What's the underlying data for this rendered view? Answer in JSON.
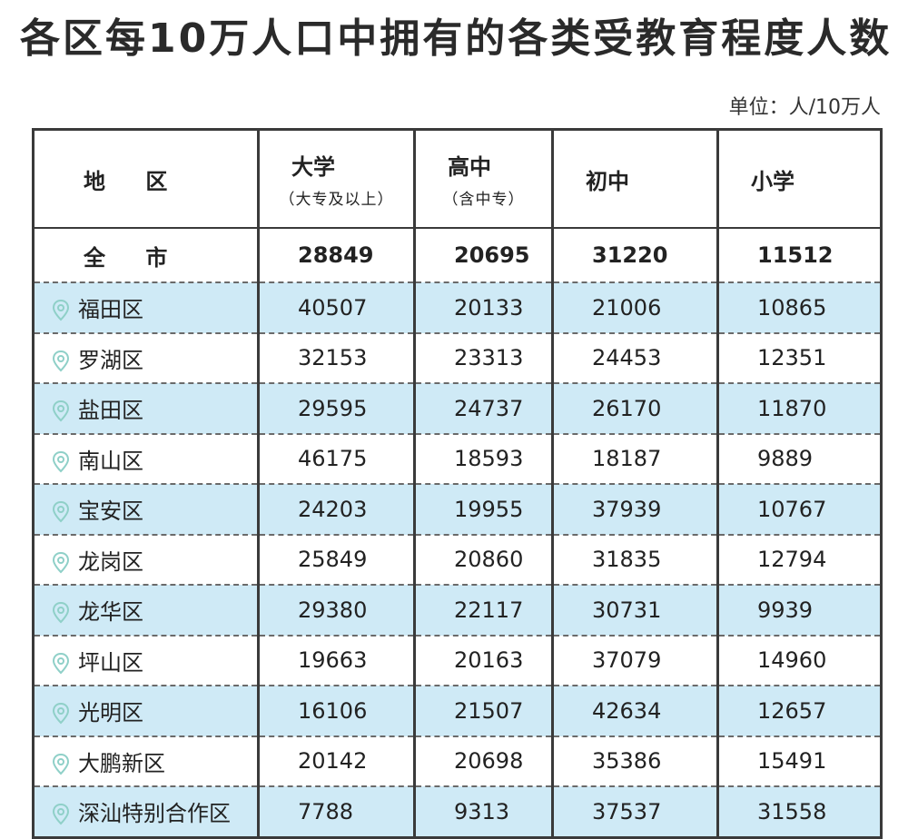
{
  "title": "各区每10万人口中拥有的各类受教育程度人数",
  "unit": "单位：人/10万人",
  "header": {
    "region": "地 区",
    "col1": "大学",
    "col1_sub": "（大专及以上）",
    "col2": "高中",
    "col2_sub": "（含中专）",
    "col3": "初中",
    "col4": "小学"
  },
  "total": {
    "region": "全 市",
    "values": [
      "28849",
      "20695",
      "31220",
      "11512"
    ]
  },
  "rows": [
    {
      "region": "福田区",
      "values": [
        "40507",
        "20133",
        "21006",
        "10865"
      ]
    },
    {
      "region": "罗湖区",
      "values": [
        "32153",
        "23313",
        "24453",
        "12351"
      ]
    },
    {
      "region": "盐田区",
      "values": [
        "29595",
        "24737",
        "26170",
        "11870"
      ]
    },
    {
      "region": "南山区",
      "values": [
        "46175",
        "18593",
        "18187",
        "9889"
      ]
    },
    {
      "region": "宝安区",
      "values": [
        "24203",
        "19955",
        "37939",
        "10767"
      ]
    },
    {
      "region": "龙岗区",
      "values": [
        "25849",
        "20860",
        "31835",
        "12794"
      ]
    },
    {
      "region": "龙华区",
      "values": [
        "29380",
        "22117",
        "30731",
        "9939"
      ]
    },
    {
      "region": "坪山区",
      "values": [
        "19663",
        "20163",
        "37079",
        "14960"
      ]
    },
    {
      "region": "光明区",
      "values": [
        "16106",
        "21507",
        "42634",
        "12657"
      ]
    },
    {
      "region": "大鹏新区",
      "values": [
        "20142",
        "20698",
        "35386",
        "15491"
      ]
    },
    {
      "region": "深汕特别合作区",
      "values": [
        "7788",
        "9313",
        "37537",
        "31558"
      ]
    }
  ],
  "colors": {
    "shade": "#cfeaf6",
    "pin": "#8fd0c8",
    "border": "#3a3a3a"
  },
  "icon": "location-pin-icon",
  "chart_data": {
    "type": "table",
    "title": "各区每10万人口中拥有的各类受教育程度人数",
    "unit": "单位：人/10万人",
    "columns": [
      "地 区",
      "大学（大专及以上）",
      "高中（含中专）",
      "初中",
      "小学"
    ],
    "rows": [
      [
        "全 市",
        28849,
        20695,
        31220,
        11512
      ],
      [
        "福田区",
        40507,
        20133,
        21006,
        10865
      ],
      [
        "罗湖区",
        32153,
        23313,
        24453,
        12351
      ],
      [
        "盐田区",
        29595,
        24737,
        26170,
        11870
      ],
      [
        "南山区",
        46175,
        18593,
        18187,
        9889
      ],
      [
        "宝安区",
        24203,
        19955,
        37939,
        10767
      ],
      [
        "龙岗区",
        25849,
        20860,
        31835,
        12794
      ],
      [
        "龙华区",
        29380,
        22117,
        30731,
        9939
      ],
      [
        "坪山区",
        19663,
        20163,
        37079,
        14960
      ],
      [
        "光明区",
        16106,
        21507,
        42634,
        12657
      ],
      [
        "大鹏新区",
        20142,
        20698,
        35386,
        15491
      ],
      [
        "深汕特别合作区",
        7788,
        9313,
        37537,
        31558
      ]
    ]
  }
}
